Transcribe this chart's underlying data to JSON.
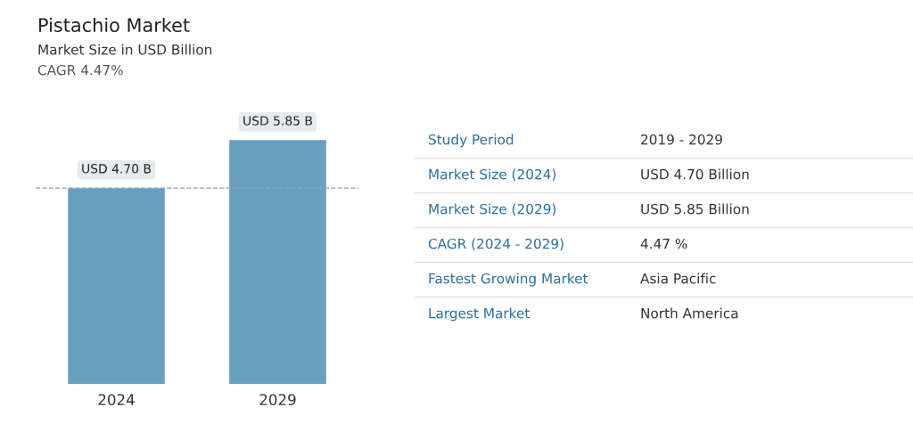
{
  "chart_data": [
    {
      "type": "bar",
      "title": "Pistachio Market",
      "subtitle": "Market Size in USD Billion",
      "annotations": [
        "CAGR 4.47%"
      ],
      "categories": [
        "2024",
        "2029"
      ],
      "values": [
        4.7,
        5.85
      ],
      "value_labels": [
        "USD 4.70 B",
        "USD 5.85 B"
      ],
      "color": "#6a9fc0",
      "ref_lines": [
        {
          "axis": "y",
          "value": 4.7,
          "label": null,
          "color": "#8aa5b5",
          "line_style": "dashed"
        }
      ]
    },
    {
      "type": "other",
      "annotations": [
        "Study Period",
        "2019 - 2029",
        "Market Size (2024)",
        "USD 4.70 Billion",
        "Market Size (2029)",
        "USD 5.85 Billion",
        "CAGR (2024 - 2029)",
        "4.47 %",
        "Fastest Growing Market",
        "Asia Pacific",
        "Largest Market",
        "North America"
      ]
    }
  ]
}
